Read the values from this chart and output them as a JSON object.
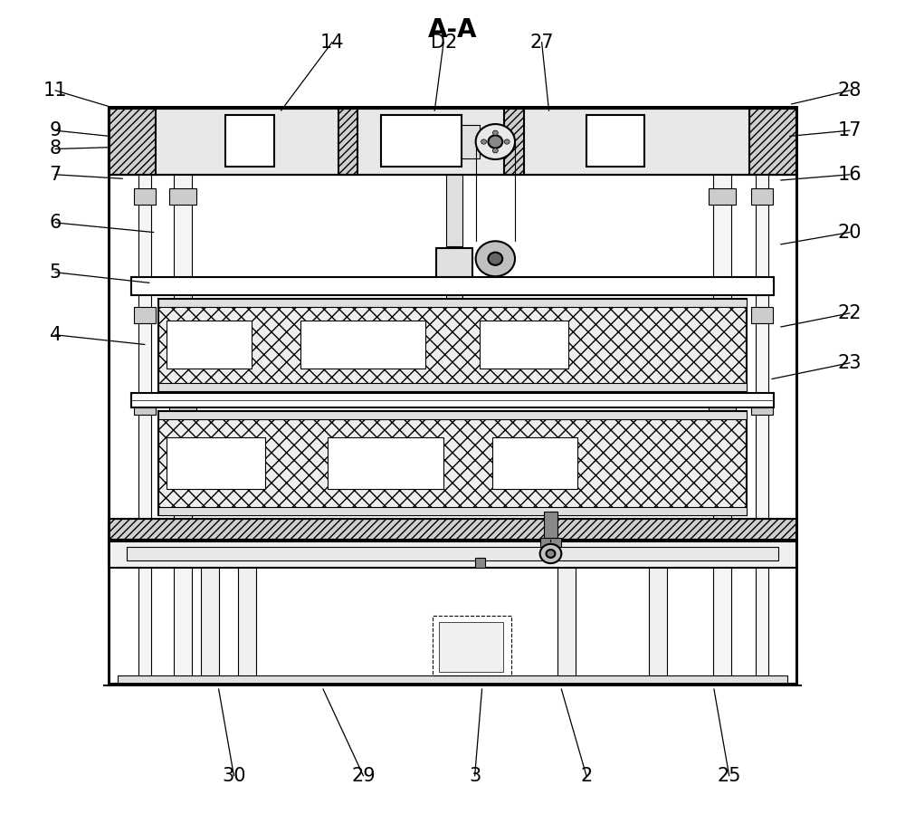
{
  "title": "A-A",
  "bg_color": "#ffffff",
  "line_color": "#000000",
  "fig_width": 10.0,
  "fig_height": 8.99,
  "left_labels": {
    "11": [
      0.055,
      0.895,
      0.115,
      0.875
    ],
    "9": [
      0.055,
      0.845,
      0.115,
      0.838
    ],
    "8": [
      0.055,
      0.822,
      0.115,
      0.824
    ],
    "7": [
      0.055,
      0.79,
      0.13,
      0.785
    ],
    "6": [
      0.055,
      0.73,
      0.165,
      0.718
    ],
    "5": [
      0.055,
      0.668,
      0.16,
      0.655
    ],
    "4": [
      0.055,
      0.59,
      0.155,
      0.578
    ]
  },
  "right_labels": {
    "28": [
      0.945,
      0.895,
      0.88,
      0.878
    ],
    "17": [
      0.945,
      0.845,
      0.878,
      0.838
    ],
    "16": [
      0.945,
      0.79,
      0.868,
      0.783
    ],
    "20": [
      0.945,
      0.718,
      0.868,
      0.703
    ],
    "22": [
      0.945,
      0.617,
      0.868,
      0.6
    ],
    "23": [
      0.945,
      0.555,
      0.858,
      0.535
    ]
  },
  "top_labels": {
    "14": [
      0.365,
      0.955,
      0.308,
      0.87
    ],
    "D2": [
      0.49,
      0.955,
      0.48,
      0.87
    ],
    "27": [
      0.6,
      0.955,
      0.608,
      0.87
    ]
  },
  "bot_labels": {
    "30": [
      0.255,
      0.04,
      0.238,
      0.148
    ],
    "29": [
      0.4,
      0.04,
      0.355,
      0.148
    ],
    "3": [
      0.525,
      0.04,
      0.533,
      0.148
    ],
    "2": [
      0.65,
      0.04,
      0.622,
      0.148
    ],
    "25": [
      0.81,
      0.04,
      0.793,
      0.148
    ]
  }
}
